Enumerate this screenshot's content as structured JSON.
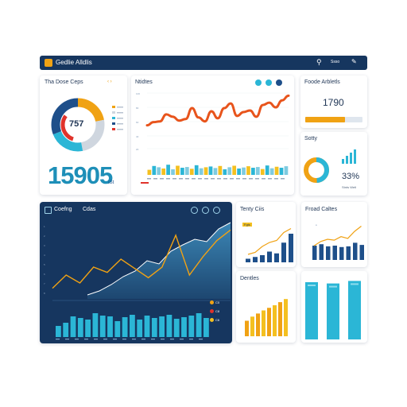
{
  "app": {
    "title": "Gedlie Alldlis"
  },
  "colors": {
    "navy": "#16365f",
    "orange": "#f0a214",
    "deep_orange": "#e8541c",
    "teal": "#2bb6d6",
    "red": "#e0332b",
    "blue": "#1e4f8a",
    "yellow": "#f4c020"
  },
  "topbar": {
    "menu_text": "Ssso"
  },
  "donut_card": {
    "title": "Tha Dose Ceps",
    "center_value": "757",
    "big_number": "15905",
    "big_suffix": "ISt"
  },
  "trend_card": {
    "title": "Ntidtes"
  },
  "sales_card": {
    "title": "Foode Arbletls",
    "value": "1790",
    "progress": 0.7
  },
  "small_donut_card": {
    "title": "Sotty",
    "percent": "33%",
    "caption": "Stnts Wetl"
  },
  "main_chart_card": {
    "title": "Coefng",
    "subtitle": "Cdas",
    "legend": [
      "C0",
      "C8",
      "C6"
    ]
  },
  "tentry_card": {
    "title": "Tenty Ciis",
    "badge": "Fgts"
  },
  "bottom_right_card": {
    "title": "Froad Caltes"
  },
  "denties_card": {
    "title": "Dentles"
  },
  "chart_data": [
    {
      "id": "donut",
      "type": "pie",
      "series": [
        {
          "values": [
            22,
            25,
            22,
            31
          ],
          "colors": [
            "#f0a214",
            "#cfd6df",
            "#2bb6d6",
            "#1e4f8a"
          ]
        }
      ],
      "inner_ring": [
        {
          "value": 30,
          "color": "#e0332b"
        },
        {
          "value": 70,
          "color": "#ffffff"
        }
      ]
    },
    {
      "id": "trend",
      "type": "line",
      "y": [
        30,
        34,
        35,
        44,
        41,
        36,
        38,
        52,
        40,
        35,
        48,
        39,
        52,
        58,
        42,
        47,
        49,
        41,
        56,
        59,
        53,
        62,
        68
      ],
      "bars": [
        20,
        35,
        30,
        25,
        40,
        22,
        36,
        28,
        31,
        24,
        38,
        26,
        30,
        33,
        27,
        35,
        22,
        30,
        36,
        25,
        29,
        34,
        28,
        31,
        23,
        37,
        26,
        32,
        28,
        34
      ],
      "ylim": [
        0,
        100
      ]
    },
    {
      "id": "main_area",
      "type": "area",
      "area": [
        5,
        10,
        18,
        28,
        35,
        48,
        44,
        60,
        68,
        75,
        72,
        88,
        96
      ],
      "line": [
        48,
        58,
        52,
        64,
        60,
        70,
        63,
        56,
        64,
        88,
        58,
        72,
        84,
        92
      ],
      "bars": [
        14,
        18,
        26,
        24,
        22,
        30,
        27,
        26,
        20,
        25,
        28,
        22,
        27,
        24,
        26,
        28,
        23,
        25,
        27,
        30,
        24
      ],
      "ylim": [
        0,
        100
      ]
    },
    {
      "id": "tentry",
      "type": "bar",
      "values": [
        10,
        15,
        20,
        30,
        25,
        55,
        80
      ],
      "line": [
        20,
        25,
        40,
        50,
        55,
        75,
        85
      ],
      "ylim": [
        0,
        100
      ]
    },
    {
      "id": "bottom_right",
      "type": "bar",
      "values": [
        40,
        44,
        38,
        40,
        36,
        38,
        48,
        42
      ],
      "line": [
        45,
        55,
        60,
        58,
        66,
        62,
        78,
        90
      ],
      "ylim": [
        0,
        100
      ]
    },
    {
      "id": "denties",
      "type": "bar",
      "values": [
        30,
        38,
        44,
        50,
        55,
        60,
        66,
        72
      ],
      "ylim": [
        0,
        100
      ]
    },
    {
      "id": "tall_bars",
      "type": "bar",
      "values": [
        90,
        88,
        92
      ],
      "ylim": [
        0,
        100
      ]
    }
  ]
}
